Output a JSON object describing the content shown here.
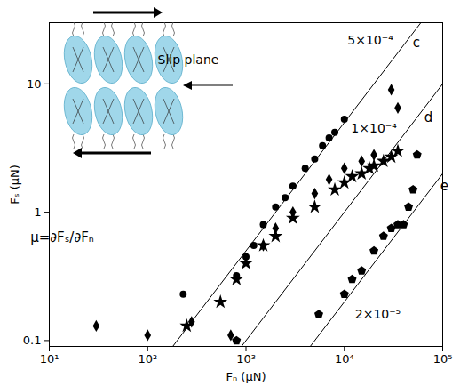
{
  "chart_data": {
    "type": "scatter",
    "xlabel": "Fₙ (μN)",
    "ylabel": "Fₛ (μN)",
    "log": true,
    "grid": false,
    "xlim": [
      10,
      100000
    ],
    "ylim": [
      0.09,
      30
    ],
    "xticks": [
      {
        "value": 10,
        "label": "10¹"
      },
      {
        "value": 100,
        "label": "10²"
      },
      {
        "value": 1000,
        "label": "10³"
      },
      {
        "value": 10000,
        "label": "10⁴"
      },
      {
        "value": 100000,
        "label": "10⁵"
      }
    ],
    "yticks": [
      0.1,
      1,
      10
    ],
    "series": [
      {
        "marker": "circle",
        "color": "#000000",
        "x": [
          230,
          800,
          1000,
          1200,
          1500,
          2000,
          2500,
          3000,
          4000,
          5000,
          6000,
          7000,
          8000,
          10000
        ],
        "values": [
          0.23,
          0.32,
          0.45,
          0.55,
          0.8,
          1.1,
          1.3,
          1.6,
          2.2,
          2.6,
          3.3,
          3.8,
          4.2,
          5.3
        ]
      },
      {
        "marker": "diamond",
        "color": "#000000",
        "x": [
          30,
          100,
          280,
          700,
          1500,
          2000,
          3000,
          5000,
          7000,
          10000,
          15000,
          20000,
          30000,
          35000
        ],
        "values": [
          0.13,
          0.11,
          0.14,
          0.11,
          0.55,
          0.75,
          1.0,
          1.4,
          1.8,
          2.2,
          2.5,
          2.8,
          9,
          6.5
        ]
      },
      {
        "marker": "star",
        "color": "#000000",
        "x": [
          250,
          550,
          800,
          1000,
          1500,
          2000,
          3000,
          5000,
          8000,
          10000,
          12000,
          15000,
          18000,
          20000,
          25000,
          30000,
          35000
        ],
        "values": [
          0.13,
          0.2,
          0.3,
          0.4,
          0.55,
          0.65,
          0.9,
          1.1,
          1.5,
          1.7,
          1.9,
          2.0,
          2.2,
          2.3,
          2.5,
          2.7,
          3.0
        ]
      },
      {
        "marker": "pentagon",
        "color": "#000000",
        "x": [
          800,
          5500,
          10000,
          12000,
          15000,
          20000,
          25000,
          30000,
          35000,
          40000,
          45000,
          50000,
          55000
        ],
        "values": [
          0.1,
          0.16,
          0.23,
          0.3,
          0.35,
          0.5,
          0.65,
          0.75,
          0.8,
          0.8,
          1.1,
          1.5,
          2.8
        ]
      }
    ],
    "reference_lines": [
      {
        "name": "c",
        "slope": 0.0005,
        "slope_label": "5×10⁻⁴"
      },
      {
        "name": "d",
        "slope": 0.0001,
        "slope_label": "1×10⁻⁴"
      },
      {
        "name": "e",
        "slope": 2e-05,
        "slope_label": "2×10⁻⁵"
      }
    ],
    "annotations": [
      "μ=∂Fₛ/∂Fₙ",
      "Slip plane"
    ]
  }
}
